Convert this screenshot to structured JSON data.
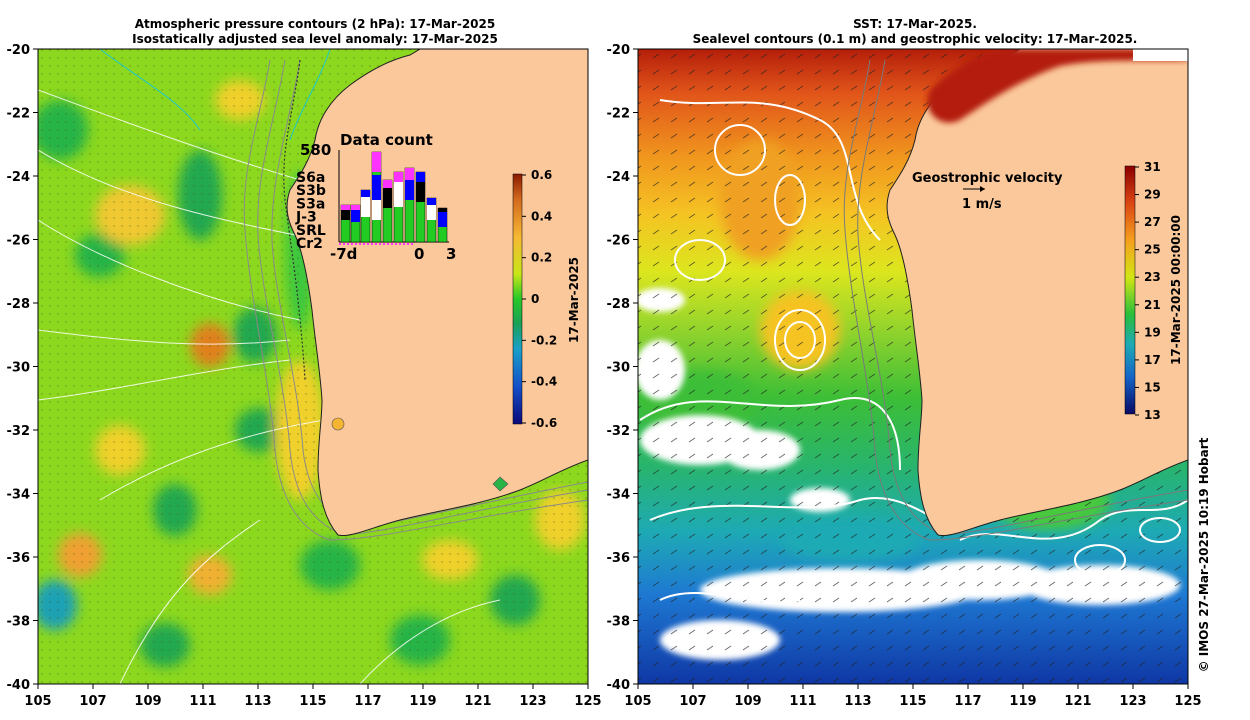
{
  "left_panel": {
    "title_line1": "Atmospheric pressure contours (2 hPa): 17-Mar-2025",
    "title_line2": "Isostatically adjusted sea level anomaly: 17-Mar-2025",
    "colorbar": {
      "label": "17-Mar-2025",
      "ticks": [
        "0.6",
        "0.4",
        "0.2",
        "0",
        "-0.2",
        "-0.4",
        "-0.6"
      ],
      "range": [
        -0.6,
        0.6
      ]
    },
    "data_count": {
      "title": "Data count",
      "max_label": "580",
      "x_labels": [
        "-7d",
        "0",
        "3"
      ],
      "missions": [
        {
          "name": "S6a",
          "color": "#ff33ff"
        },
        {
          "name": "S3b",
          "color": "#0000ff"
        },
        {
          "name": "S3a",
          "color": "#ffffff"
        },
        {
          "name": "J-3",
          "color": "#000000"
        },
        {
          "name": "SRL",
          "color": "#33e6e6"
        },
        {
          "name": "Cr2",
          "color": "#22cc22"
        }
      ]
    }
  },
  "right_panel": {
    "title_line1": "SST: 17-Mar-2025.",
    "title_line2": "Sealevel contours (0.1 m) and geostrophic velocity: 17-Mar-2025.",
    "colorbar": {
      "label": "17-Mar-2025 00:00:00",
      "ticks": [
        "31",
        "29",
        "27",
        "25",
        "23",
        "21",
        "19",
        "17",
        "15",
        "13"
      ],
      "range": [
        13,
        31
      ]
    },
    "velocity_legend": {
      "title": "Geostrophic velocity",
      "scale": "1 m/s"
    }
  },
  "axes": {
    "x_ticks": [
      "105",
      "107",
      "109",
      "111",
      "113",
      "115",
      "117",
      "119",
      "121",
      "123",
      "125"
    ],
    "y_ticks": [
      "-20",
      "-22",
      "-24",
      "-26",
      "-28",
      "-30",
      "-32",
      "-34",
      "-36",
      "-38",
      "-40"
    ],
    "lon_range": [
      105,
      125
    ],
    "lat_range": [
      -40,
      -20
    ]
  },
  "credit": "© IMOS 27-Mar-2025 10:19 Hobart",
  "colors": {
    "land": "#fac89b",
    "sla_mid": "#7ddc1e",
    "sst_warm": "#e65a14"
  }
}
